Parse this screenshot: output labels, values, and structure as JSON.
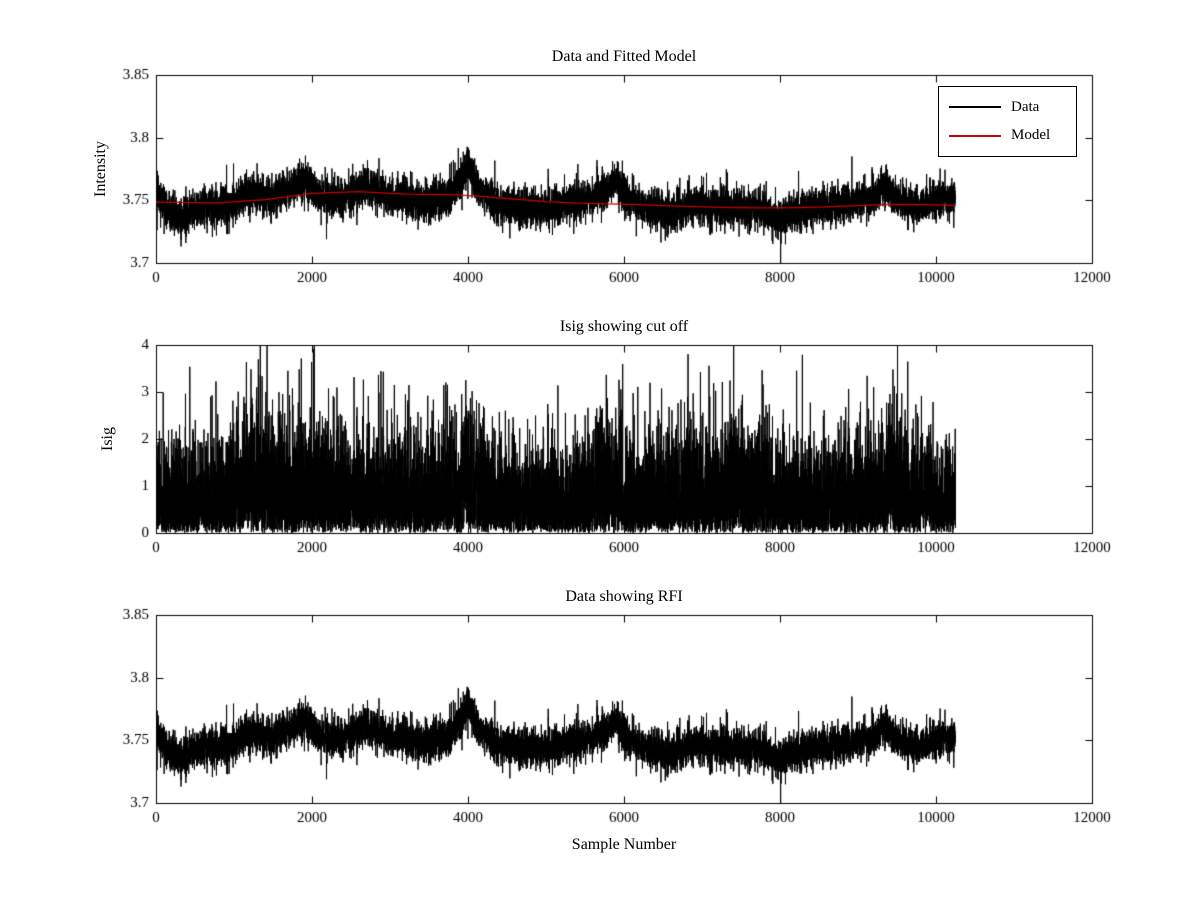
{
  "figure": {
    "background": "#ffffff",
    "text_color": "#000000"
  },
  "chart_data": [
    {
      "type": "line",
      "title": "Data and Fitted Model",
      "xlabel": "",
      "ylabel": "Intensity",
      "xlim": [
        0,
        12000
      ],
      "ylim": [
        3.7,
        3.85
      ],
      "xticks": [
        0,
        2000,
        4000,
        6000,
        8000,
        10000,
        12000
      ],
      "xtick_labels": [
        "0",
        "2000",
        "4000",
        "6000",
        "8000",
        "10000",
        "12000"
      ],
      "yticks": [
        3.7,
        3.75,
        3.8,
        3.85
      ],
      "ytick_labels": [
        "3.7",
        "3.75",
        "3.8",
        "3.85"
      ],
      "grid": false,
      "n_samples": 10250,
      "legend": {
        "position": "northeast",
        "entries": [
          {
            "label": "Data",
            "color": "#000000"
          },
          {
            "label": "Model",
            "color": "#cc0000"
          }
        ]
      },
      "series": [
        {
          "name": "Data",
          "color": "#000000",
          "render": "noisy",
          "seed": 42,
          "noise_sigma": 0.0075,
          "spike_prob": 0.04,
          "spike_extra": 0.012,
          "envelope_x": [
            0,
            150,
            300,
            500,
            800,
            1000,
            1150,
            1300,
            1500,
            1700,
            1900,
            2050,
            2200,
            2450,
            2700,
            2850,
            3000,
            3200,
            3400,
            3600,
            3800,
            3950,
            4000,
            4050,
            4150,
            4300,
            4500,
            4700,
            5000,
            5200,
            5400,
            5600,
            5750,
            5900,
            6050,
            6200,
            6400,
            6600,
            6800,
            7000,
            7200,
            7400,
            7600,
            7800,
            8000,
            8200,
            8400,
            8600,
            8800,
            9000,
            9200,
            9350,
            9500,
            9700,
            9900,
            10100,
            10250
          ],
          "envelope_y": [
            3.757,
            3.742,
            3.736,
            3.742,
            3.745,
            3.747,
            3.757,
            3.754,
            3.752,
            3.758,
            3.767,
            3.757,
            3.75,
            3.754,
            3.763,
            3.757,
            3.752,
            3.753,
            3.748,
            3.75,
            3.757,
            3.77,
            3.779,
            3.77,
            3.757,
            3.75,
            3.747,
            3.744,
            3.743,
            3.747,
            3.749,
            3.752,
            3.758,
            3.765,
            3.752,
            3.746,
            3.742,
            3.74,
            3.745,
            3.747,
            3.744,
            3.742,
            3.745,
            3.741,
            3.737,
            3.74,
            3.743,
            3.745,
            3.747,
            3.75,
            3.755,
            3.762,
            3.75,
            3.744,
            3.747,
            3.752,
            3.754
          ]
        },
        {
          "name": "Model",
          "color": "#cc0000",
          "render": "smooth",
          "x": [
            0,
            800,
            1400,
            2000,
            2600,
            3200,
            3800,
            4200,
            4600,
            5000,
            5400,
            5800,
            6200,
            6600,
            7000,
            7400,
            7800,
            8200,
            8600,
            9000,
            9400,
            9800,
            10250
          ],
          "y": [
            3.7485,
            3.748,
            3.7505,
            3.7555,
            3.757,
            3.755,
            3.7545,
            3.753,
            3.751,
            3.749,
            3.7478,
            3.7472,
            3.7465,
            3.7455,
            3.7448,
            3.7442,
            3.744,
            3.7442,
            3.7448,
            3.7458,
            3.7468,
            3.7465,
            3.746
          ]
        }
      ]
    },
    {
      "type": "line",
      "title": "Isig showing cut off",
      "xlabel": "",
      "ylabel": "Isig",
      "xlim": [
        0,
        12000
      ],
      "ylim": [
        0,
        4
      ],
      "xticks": [
        0,
        2000,
        4000,
        6000,
        8000,
        10000,
        12000
      ],
      "xtick_labels": [
        "0",
        "2000",
        "4000",
        "6000",
        "8000",
        "10000",
        "12000"
      ],
      "yticks": [
        0,
        1,
        2,
        3,
        4
      ],
      "ytick_labels": [
        "0",
        "1",
        "2",
        "3",
        "4"
      ],
      "grid": false,
      "n_samples": 10250,
      "series": [
        {
          "name": "Isig",
          "color": "#000000",
          "render": "halfnormal",
          "seed": 7,
          "clip_max": 4,
          "scale_x": [
            0,
            300,
            700,
            1100,
            1400,
            1700,
            2000,
            2300,
            2700,
            3000,
            3400,
            3800,
            4000,
            4200,
            4600,
            5000,
            5400,
            5800,
            6100,
            6500,
            6800,
            7200,
            7500,
            7900,
            8300,
            8700,
            9100,
            9400,
            9700,
            10000,
            10250
          ],
          "scale_y": [
            1.0,
            0.95,
            0.9,
            1.25,
            1.3,
            1.1,
            1.25,
            1.0,
            1.05,
            1.0,
            0.95,
            1.05,
            1.35,
            1.0,
            0.85,
            0.85,
            0.9,
            1.2,
            1.0,
            1.0,
            1.15,
            1.1,
            1.1,
            1.0,
            0.95,
            1.0,
            1.0,
            1.3,
            1.0,
            1.0,
            1.05
          ]
        }
      ]
    },
    {
      "type": "line",
      "title": "Data showing RFI",
      "xlabel": "Sample Number",
      "ylabel": "",
      "xlim": [
        0,
        12000
      ],
      "ylim": [
        3.7,
        3.85
      ],
      "xticks": [
        0,
        2000,
        4000,
        6000,
        8000,
        10000,
        12000
      ],
      "xtick_labels": [
        "0",
        "2000",
        "4000",
        "6000",
        "8000",
        "10000",
        "12000"
      ],
      "yticks": [
        3.7,
        3.75,
        3.8,
        3.85
      ],
      "ytick_labels": [
        "3.7",
        "3.75",
        "3.8",
        "3.85"
      ],
      "grid": false,
      "n_samples": 10250,
      "series": [
        {
          "name": "Data",
          "color": "#000000",
          "render": "noisy",
          "seed": 42,
          "noise_sigma": 0.0075,
          "spike_prob": 0.04,
          "spike_extra": 0.012,
          "envelope_x": [
            0,
            150,
            300,
            500,
            800,
            1000,
            1150,
            1300,
            1500,
            1700,
            1900,
            2050,
            2200,
            2450,
            2700,
            2850,
            3000,
            3200,
            3400,
            3600,
            3800,
            3950,
            4000,
            4050,
            4150,
            4300,
            4500,
            4700,
            5000,
            5200,
            5400,
            5600,
            5750,
            5900,
            6050,
            6200,
            6400,
            6600,
            6800,
            7000,
            7200,
            7400,
            7600,
            7800,
            8000,
            8200,
            8400,
            8600,
            8800,
            9000,
            9200,
            9350,
            9500,
            9700,
            9900,
            10100,
            10250
          ],
          "envelope_y": [
            3.757,
            3.742,
            3.736,
            3.742,
            3.745,
            3.747,
            3.757,
            3.754,
            3.752,
            3.758,
            3.767,
            3.757,
            3.75,
            3.754,
            3.763,
            3.757,
            3.752,
            3.753,
            3.748,
            3.75,
            3.757,
            3.77,
            3.779,
            3.77,
            3.757,
            3.75,
            3.747,
            3.744,
            3.743,
            3.747,
            3.749,
            3.752,
            3.758,
            3.765,
            3.752,
            3.746,
            3.742,
            3.74,
            3.745,
            3.747,
            3.744,
            3.742,
            3.745,
            3.741,
            3.737,
            3.74,
            3.743,
            3.745,
            3.747,
            3.75,
            3.755,
            3.762,
            3.75,
            3.744,
            3.747,
            3.752,
            3.754
          ]
        }
      ]
    }
  ]
}
